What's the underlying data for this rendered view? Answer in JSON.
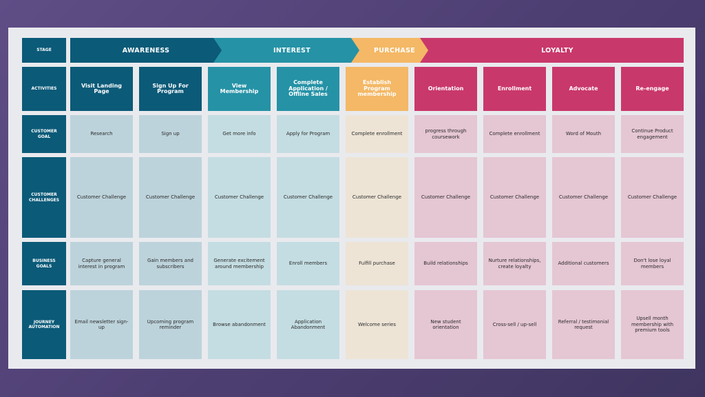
{
  "colors": {
    "background": "#54457a",
    "board": "#e9eaee",
    "row_label": "#0b5a78",
    "awareness": "#0b5a78",
    "awareness_light": "#bdd3db",
    "interest": "#2592a6",
    "interest_light": "#c4dde2",
    "purchase": "#f4b866",
    "purchase_light": "#ede4d6",
    "loyalty": "#c9386b",
    "loyalty_light": "#e5c6d3"
  },
  "row_labels": [
    "STAGE",
    "ACTIVITIES",
    "CUSTOMER GOAL",
    "CUSTOMER CHALLENGES",
    "BUSINESS GOALS",
    "JOURNEY AUTOMATION"
  ],
  "stages": [
    {
      "label": "AWARENESS",
      "key": "awareness"
    },
    {
      "label": "INTEREST",
      "key": "interest"
    },
    {
      "label": "PURCHASE",
      "key": "purchase"
    },
    {
      "label": "LOYALTY",
      "key": "loyalty"
    }
  ],
  "columns": [
    {
      "stage": "awareness",
      "activity": "Visit Landing Page",
      "goal": "Research",
      "challenge": "Customer Challenge",
      "business": "Capture general interest in program",
      "automation": "Email newsletter sign-up"
    },
    {
      "stage": "awareness",
      "activity": "Sign Up For Program",
      "goal": "Sign up",
      "challenge": "Customer Challenge",
      "business": "Gain members  and subscribers",
      "automation": "Upcoming program reminder"
    },
    {
      "stage": "interest",
      "activity": "View Membership",
      "goal": "Get more info",
      "challenge": "Customer Challenge",
      "business": "Generate excitement around membership",
      "automation": "Browse abandonment"
    },
    {
      "stage": "interest",
      "activity": "Complete Application / Offline Sales",
      "goal": "Apply for Program",
      "challenge": "Customer Challenge",
      "business": "Enroll members",
      "automation": "Application Abandonment"
    },
    {
      "stage": "purchase",
      "activity": "Establish Program membership",
      "goal": "Complete enrollment",
      "challenge": "Customer Challenge",
      "business": "Fulfill purchase",
      "automation": "Welcome series"
    },
    {
      "stage": "loyalty",
      "activity": "Orientation",
      "goal": "progress through coursework",
      "challenge": "Customer Challenge",
      "business": "Build relationships",
      "automation": "New student orientation"
    },
    {
      "stage": "loyalty",
      "activity": "Enrollment",
      "goal": "Complete enrollment",
      "challenge": "Customer Challenge",
      "business": "Nurture relationships, create loyalty",
      "automation": "Cross-sell / up-sell"
    },
    {
      "stage": "loyalty",
      "activity": "Advocate",
      "goal": "Word of Mouth",
      "challenge": "Customer Challenge",
      "business": "Additional customers",
      "automation": "Referral / testimonial request"
    },
    {
      "stage": "loyalty",
      "activity": "Re-engage",
      "goal": "Continue Product engagement",
      "challenge": "Customer Challenge",
      "business": "Don't lose loyal members",
      "automation": "Upsell month membership with premium tools"
    }
  ]
}
